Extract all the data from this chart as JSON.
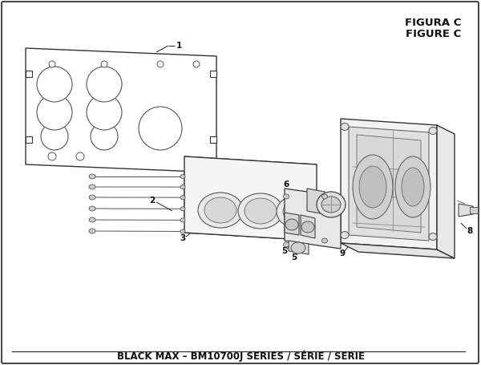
{
  "title": "BLACK MAX – BM10700J SERIES / SÉRIE / SERIE",
  "figure_label": "FIGURE C",
  "figura_label": "FIGURA C",
  "bg_color": "#ffffff",
  "border_color": "#333333",
  "line_color": "#333333",
  "title_fontsize": 8.5,
  "label_fontsize": 8.0,
  "fig_label_fontsize": 9.5
}
